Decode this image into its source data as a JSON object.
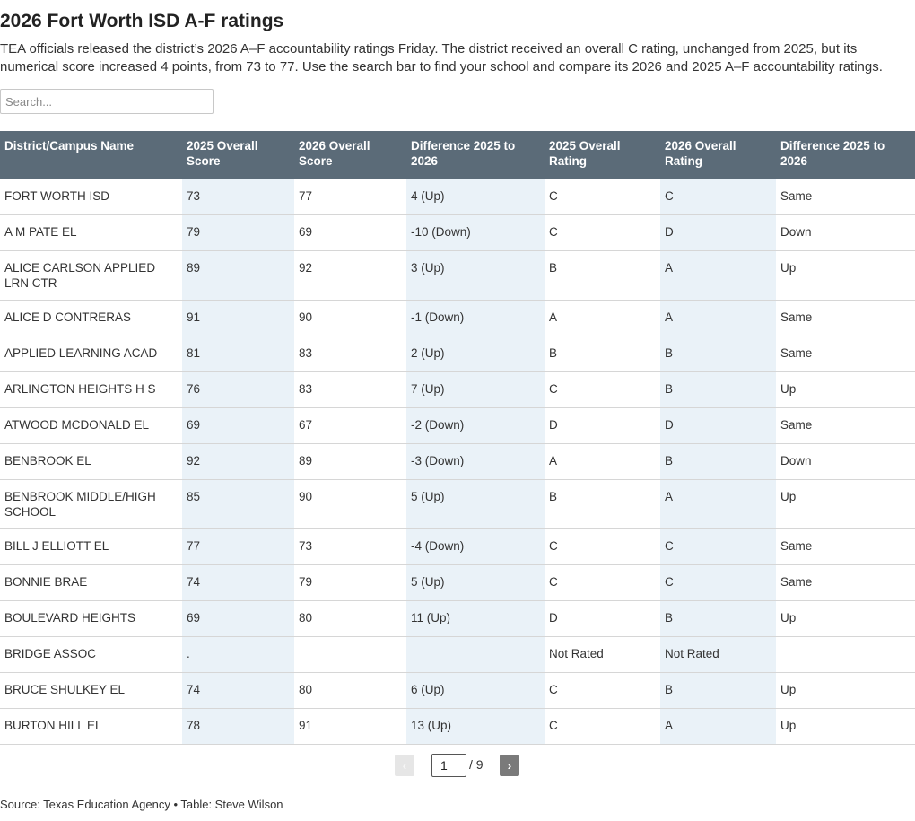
{
  "header": {
    "title": "2026 Fort Worth ISD A-F ratings",
    "description": "TEA officials released the district’s 2026 A–F accountability ratings Friday. The district received an overall C rating, unchanged from 2025, but its numerical score increased 4 points, from 73 to 77. Use the search bar to find your school and compare its 2026 and 2025 A–F accountability ratings."
  },
  "search": {
    "placeholder": "Search...",
    "value": ""
  },
  "table": {
    "columns": [
      "District/Campus Name",
      "2025 Overall Score",
      "2026 Overall Score",
      "Difference 2025 to 2026",
      "2025 Overall Rating",
      "2026 Overall Rating",
      "Difference 2025 to 2026"
    ],
    "rows": [
      [
        "FORT WORTH ISD",
        "73",
        "77",
        "4 (Up)",
        "C",
        "C",
        "Same"
      ],
      [
        "A M PATE EL",
        "79",
        "69",
        "-10 (Down)",
        "C",
        "D",
        "Down"
      ],
      [
        "ALICE CARLSON APPLIED LRN CTR",
        "89",
        "92",
        "3 (Up)",
        "B",
        "A",
        "Up"
      ],
      [
        "ALICE D CONTRERAS",
        "91",
        "90",
        "-1 (Down)",
        "A",
        "A",
        "Same"
      ],
      [
        "APPLIED LEARNING ACAD",
        "81",
        "83",
        "2 (Up)",
        "B",
        "B",
        "Same"
      ],
      [
        "ARLINGTON HEIGHTS H S",
        "76",
        "83",
        "7 (Up)",
        "C",
        "B",
        "Up"
      ],
      [
        "ATWOOD MCDONALD EL",
        "69",
        "67",
        "-2 (Down)",
        "D",
        "D",
        "Same"
      ],
      [
        "BENBROOK EL",
        "92",
        "89",
        "-3 (Down)",
        "A",
        "B",
        "Down"
      ],
      [
        "BENBROOK MIDDLE/HIGH SCHOOL",
        "85",
        "90",
        "5 (Up)",
        "B",
        "A",
        "Up"
      ],
      [
        "BILL J ELLIOTT EL",
        "77",
        "73",
        "-4 (Down)",
        "C",
        "C",
        "Same"
      ],
      [
        "BONNIE BRAE",
        "74",
        "79",
        "5 (Up)",
        "C",
        "C",
        "Same"
      ],
      [
        "BOULEVARD HEIGHTS",
        "69",
        "80",
        "11 (Up)",
        "D",
        "B",
        "Up"
      ],
      [
        "BRIDGE ASSOC",
        ".",
        "",
        "",
        "Not Rated",
        "Not Rated",
        ""
      ],
      [
        "BRUCE SHULKEY EL",
        "74",
        "80",
        "6 (Up)",
        "C",
        "B",
        "Up"
      ],
      [
        "BURTON HILL EL",
        "78",
        "91",
        "13 (Up)",
        "C",
        "A",
        "Up"
      ]
    ]
  },
  "pagination": {
    "current": "1",
    "total_label": "/ 9",
    "prev_icon": "‹",
    "next_icon": "›"
  },
  "footer": {
    "source": "Source: Texas Education Agency • Table: Steve Wilson"
  }
}
